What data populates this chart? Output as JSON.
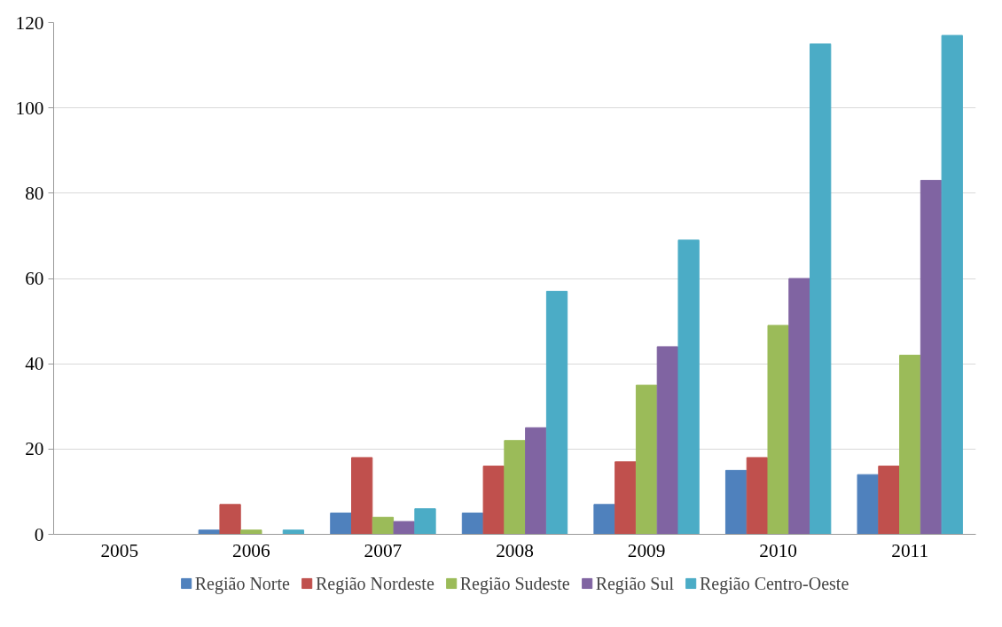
{
  "chart_data": {
    "type": "bar",
    "categories": [
      "2005",
      "2006",
      "2007",
      "2008",
      "2009",
      "2010",
      "2011"
    ],
    "series": [
      {
        "name": "Região Norte",
        "color": "#4f81bd",
        "values": [
          null,
          1,
          5,
          5,
          7,
          15,
          14
        ]
      },
      {
        "name": "Região Nordeste",
        "color": "#c0504d",
        "values": [
          null,
          7,
          18,
          16,
          17,
          18,
          16
        ]
      },
      {
        "name": "Região Sudeste",
        "color": "#9bbb59",
        "values": [
          null,
          1,
          4,
          22,
          35,
          49,
          42
        ]
      },
      {
        "name": "Região Sul",
        "color": "#8064a2",
        "values": [
          null,
          null,
          3,
          25,
          44,
          60,
          83
        ]
      },
      {
        "name": "Região Centro-Oeste",
        "color": "#4bacc6",
        "values": [
          null,
          1,
          6,
          57,
          69,
          115,
          117
        ]
      }
    ],
    "ylim": [
      0,
      120
    ],
    "yticks": [
      0,
      20,
      40,
      60,
      80,
      100,
      120
    ],
    "grid": "y",
    "legend": "bottom"
  }
}
